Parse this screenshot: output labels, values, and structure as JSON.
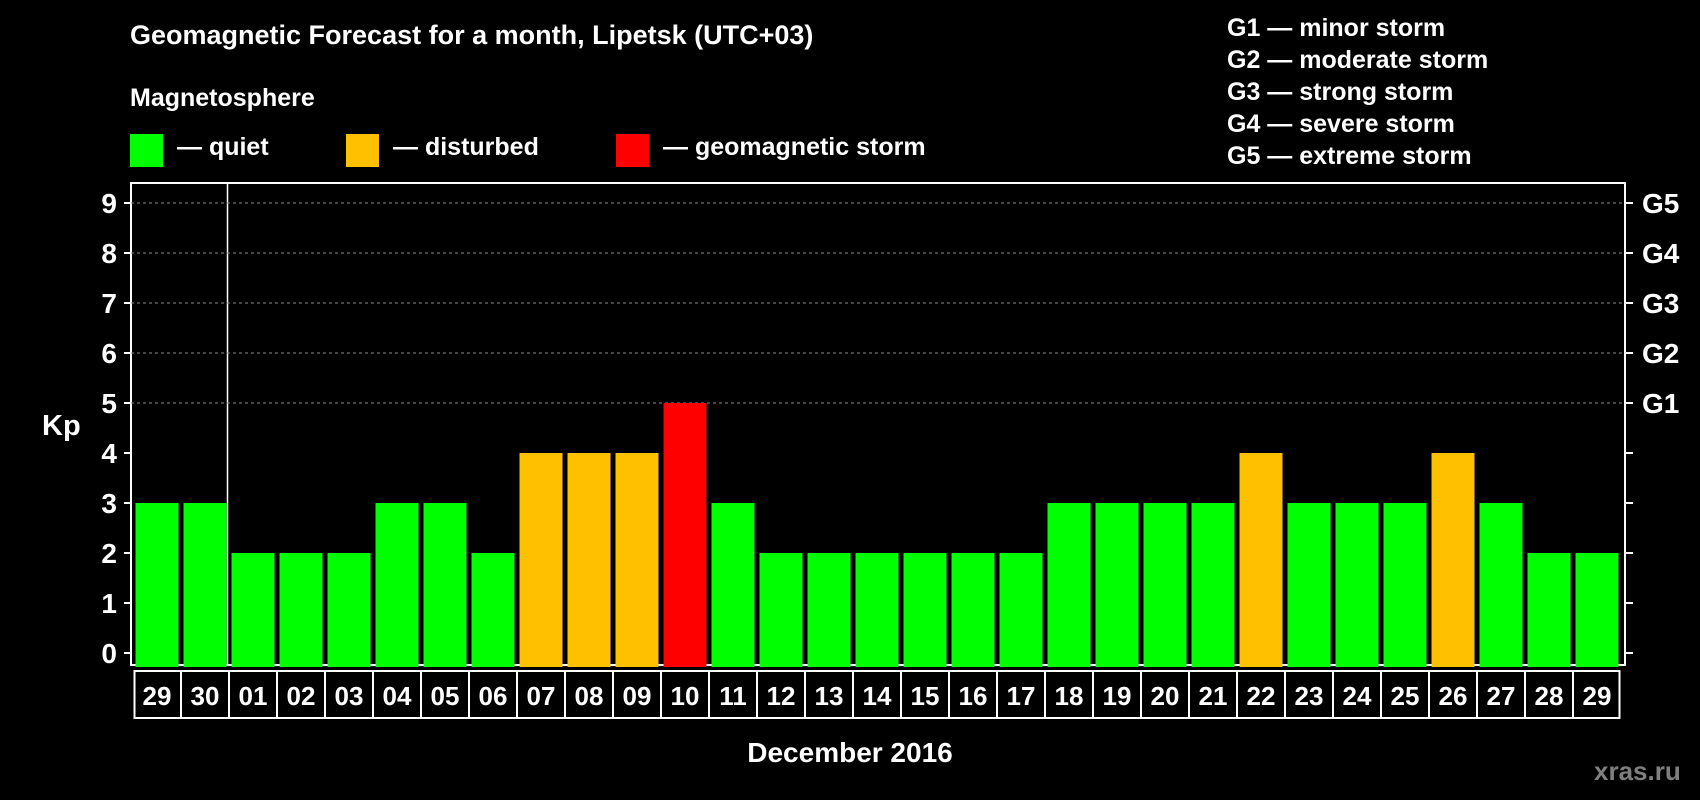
{
  "title": "Geomagnetic Forecast for a month, Lipetsk (UTC+03)",
  "magnetosphere_label": "Magnetosphere",
  "legend": [
    {
      "label": "— quiet",
      "color": "#00ff00"
    },
    {
      "label": "— disturbed",
      "color": "#ffc000"
    },
    {
      "label": "— geomagnetic storm",
      "color": "#ff0000"
    }
  ],
  "g_scale": [
    "G1 — minor storm",
    "G2 — moderate storm",
    "G3 — strong storm",
    "G4 — severe storm",
    "G5 — extreme storm"
  ],
  "watermark": "xras.ru",
  "chart_data": {
    "type": "bar",
    "ylabel": "Kp",
    "xlabel": "December 2016",
    "ylim": [
      0,
      9
    ],
    "y_ticks": [
      0,
      1,
      2,
      3,
      4,
      5,
      6,
      7,
      8,
      9
    ],
    "right_axis_labels": [
      {
        "kp": 5,
        "label": "G1"
      },
      {
        "kp": 6,
        "label": "G2"
      },
      {
        "kp": 7,
        "label": "G3"
      },
      {
        "kp": 8,
        "label": "G4"
      },
      {
        "kp": 9,
        "label": "G5"
      }
    ],
    "grid": "dashed horizontal lines at Kp 5–9",
    "categories": [
      "29",
      "30",
      "01",
      "02",
      "03",
      "04",
      "05",
      "06",
      "07",
      "08",
      "09",
      "10",
      "11",
      "12",
      "13",
      "14",
      "15",
      "16",
      "17",
      "18",
      "19",
      "20",
      "21",
      "22",
      "23",
      "24",
      "25",
      "26",
      "27",
      "28",
      "29"
    ],
    "values": [
      3,
      3,
      2,
      2,
      2,
      3,
      3,
      2,
      4,
      4,
      4,
      5,
      3,
      2,
      2,
      2,
      2,
      2,
      2,
      3,
      3,
      3,
      3,
      4,
      3,
      3,
      3,
      4,
      3,
      2,
      2
    ],
    "colors": {
      "quiet": "#00ff00",
      "disturbed": "#ffc000",
      "storm": "#ff0000"
    }
  }
}
